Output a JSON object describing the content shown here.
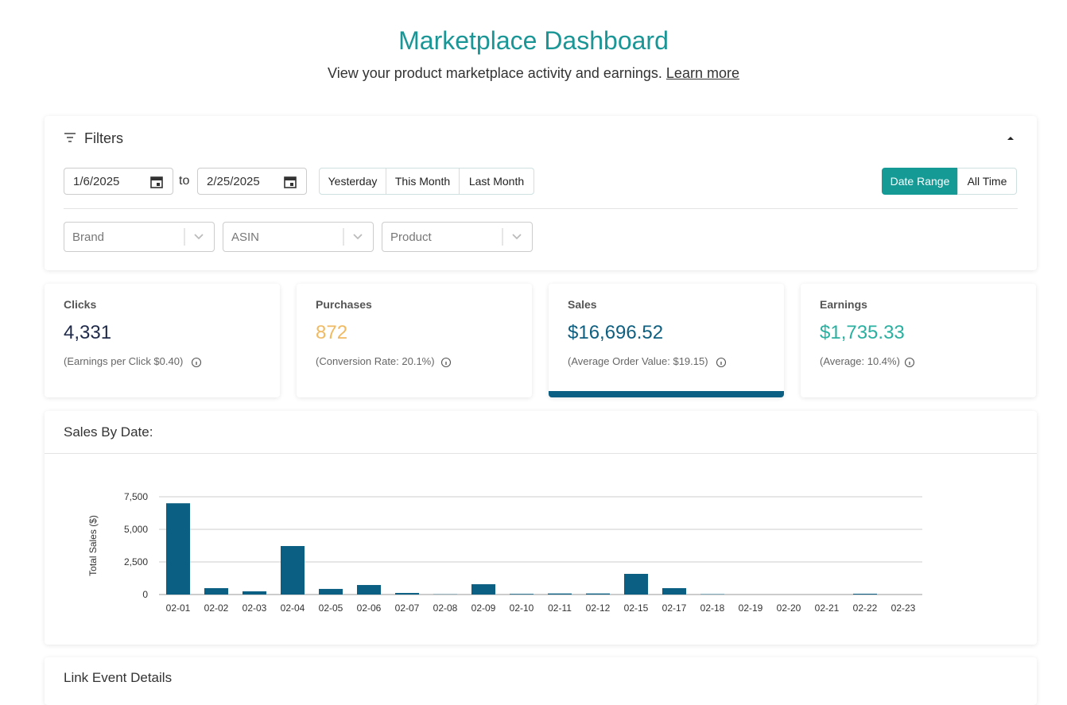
{
  "header": {
    "title": "Marketplace Dashboard",
    "subtitle": "View your product marketplace activity and earnings.",
    "link": "Learn more"
  },
  "filters": {
    "title": "Filters",
    "start_date": "1/6/2025",
    "separator": "to",
    "end_date": "2/25/2025",
    "quick_ranges": [
      "Yesterday",
      "This Month",
      "Last Month"
    ],
    "modes": [
      "Date Range",
      "All Time"
    ],
    "selects": [
      "Brand",
      "ASIN",
      "Product"
    ]
  },
  "stats": [
    {
      "label": "Clicks",
      "value": "4,331",
      "note": "(Earnings per Click $0.40)"
    },
    {
      "label": "Purchases",
      "value": "872",
      "note": "(Conversion Rate: 20.1%)"
    },
    {
      "label": "Sales",
      "value": "$16,696.52",
      "note": "(Average Order Value: $19.15)"
    },
    {
      "label": "Earnings",
      "value": "$1,735.33",
      "note": "(Average: 10.4%)"
    }
  ],
  "chart_data": {
    "type": "bar",
    "title": "Sales By Date:",
    "y_label": "Total Sales ($)",
    "color": "#0b5f82",
    "grid": true,
    "categories": [
      "02-01",
      "02-02",
      "02-03",
      "02-04",
      "02-05",
      "02-06",
      "02-07",
      "02-08",
      "02-09",
      "02-10",
      "02-11",
      "02-12",
      "02-15",
      "02-17",
      "02-18",
      "02-19",
      "02-20",
      "02-21",
      "02-22",
      "02-23"
    ],
    "values": [
      7000,
      490,
      245,
      3720,
      430,
      730,
      120,
      20,
      790,
      50,
      80,
      80,
      1585,
      490,
      30,
      0,
      0,
      0,
      60,
      0
    ],
    "ylim": [
      0,
      7500
    ],
    "yticks": [
      0,
      {
        "value": 2500,
        "label": "2,500"
      },
      {
        "value": 5000,
        "label": "5,000"
      },
      {
        "value": 7500,
        "label": "7,500"
      }
    ]
  },
  "next_section": {
    "title": "Link Event Details"
  }
}
